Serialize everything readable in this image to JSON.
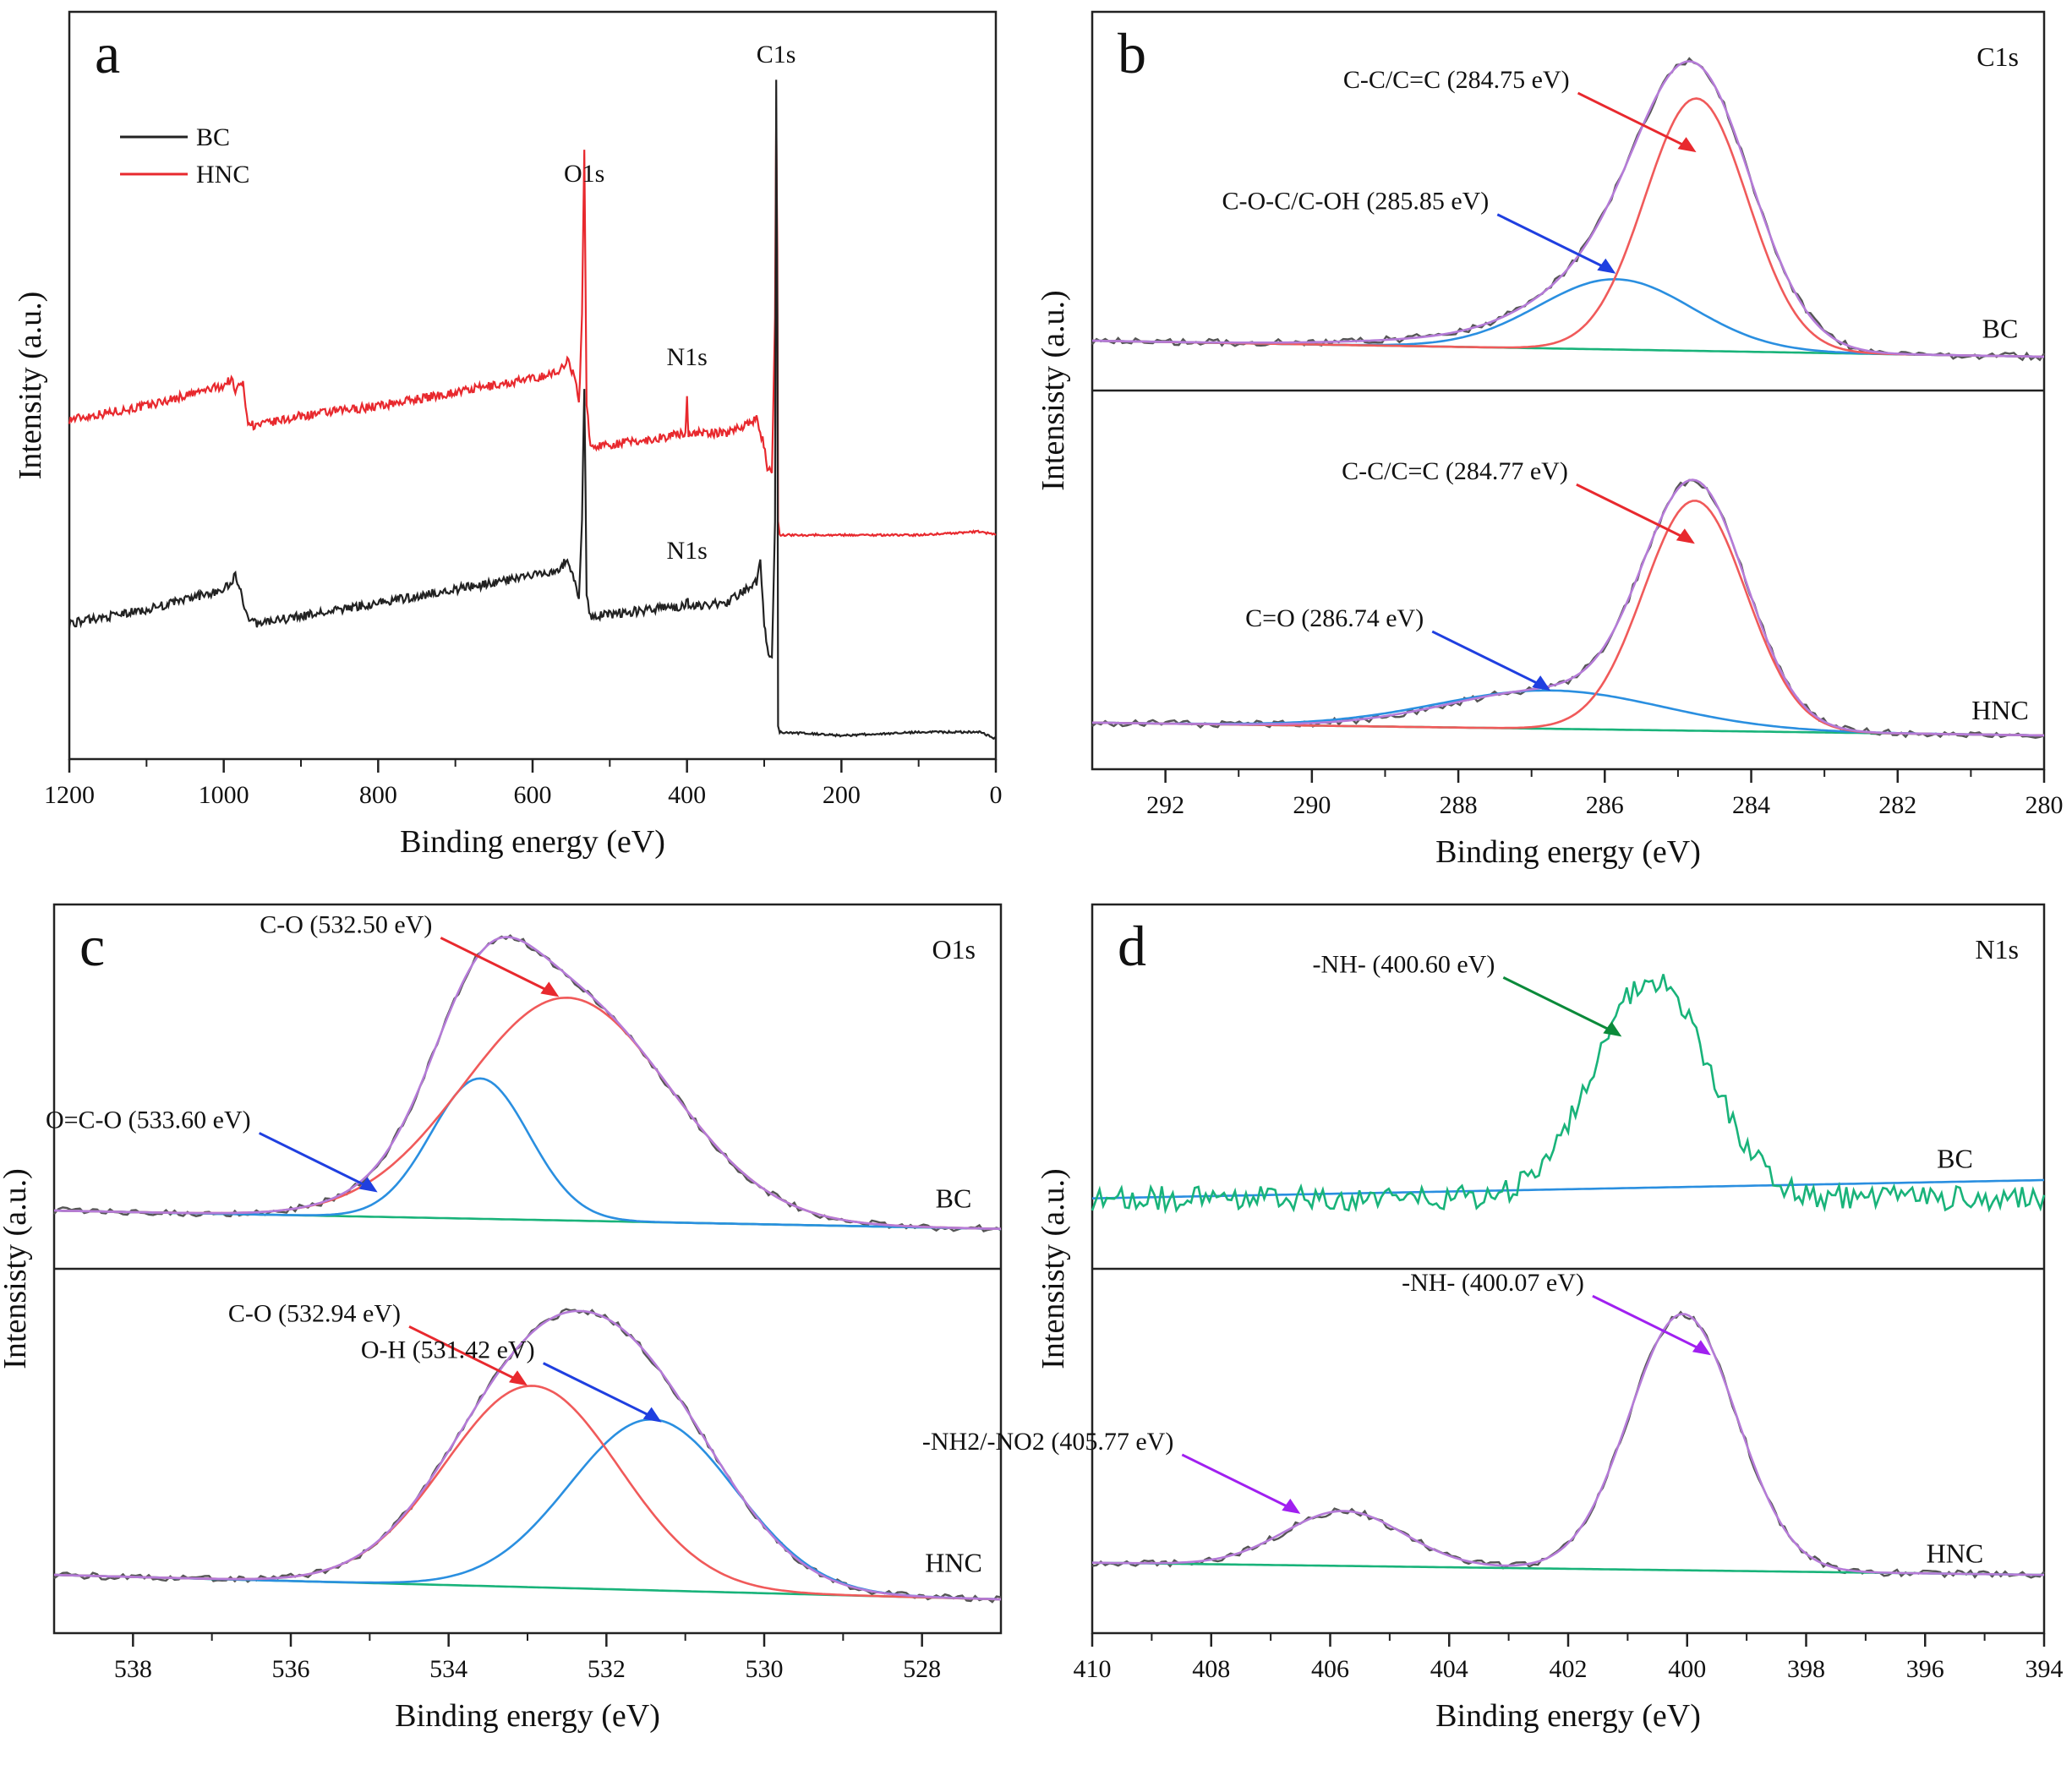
{
  "chart_data": [
    {
      "id": "a",
      "type": "line",
      "panel_label": "a",
      "xlabel": "Binding energy (eV)",
      "ylabel": "Intensity (a.u.)",
      "xlim": [
        1200,
        0
      ],
      "ylim": [
        0,
        100
      ],
      "xticks": [
        1200,
        1000,
        800,
        600,
        400,
        200,
        0
      ],
      "legend": {
        "position": "top-left",
        "entries": [
          {
            "label": "BC",
            "color": "#222222"
          },
          {
            "label": "HNC",
            "color": "#e8292e"
          }
        ]
      },
      "series": [
        {
          "name": "HNC",
          "color": "#e8292e",
          "points": [
            [
              1200,
              45
            ],
            [
              1100,
              47
            ],
            [
              1000,
              50
            ],
            [
              990,
              51
            ],
            [
              985,
              49
            ],
            [
              975,
              51
            ],
            [
              970,
              45
            ],
            [
              960,
              44
            ],
            [
              900,
              45.5
            ],
            [
              800,
              47
            ],
            [
              700,
              49
            ],
            [
              600,
              51
            ],
            [
              565,
              52
            ],
            [
              555,
              54
            ],
            [
              545,
              51
            ],
            [
              540,
              47
            ],
            [
              536,
              60
            ],
            [
              533,
              85
            ],
            [
              530,
              47
            ],
            [
              525,
              41
            ],
            [
              450,
              42
            ],
            [
              402,
              43
            ],
            [
              400,
              48
            ],
            [
              398,
              43
            ],
            [
              350,
              43
            ],
            [
              310,
              45
            ],
            [
              302,
              42
            ],
            [
              296,
              38
            ],
            [
              290,
              37
            ],
            [
              286,
              60
            ],
            [
              284.5,
              90
            ],
            [
              283,
              70
            ],
            [
              282,
              30
            ],
            [
              280,
              28
            ],
            [
              200,
              28
            ],
            [
              100,
              28
            ],
            [
              20,
              28.5
            ],
            [
              0,
              28
            ]
          ]
        },
        {
          "name": "BC",
          "color": "#222222",
          "points": [
            [
              1200,
              15
            ],
            [
              1100,
              17
            ],
            [
              1000,
              20
            ],
            [
              990,
              21
            ],
            [
              985,
              22
            ],
            [
              978,
              20
            ],
            [
              970,
              16
            ],
            [
              960,
              15
            ],
            [
              900,
              16
            ],
            [
              800,
              18
            ],
            [
              700,
              20
            ],
            [
              600,
              22
            ],
            [
              565,
              23
            ],
            [
              555,
              24.5
            ],
            [
              545,
              21
            ],
            [
              540,
              18
            ],
            [
              536,
              30
            ],
            [
              533,
              50
            ],
            [
              530,
              19
            ],
            [
              525,
              16
            ],
            [
              450,
              17
            ],
            [
              402,
              17.5
            ],
            [
              400,
              19
            ],
            [
              398,
              17.5
            ],
            [
              350,
              18
            ],
            [
              310,
              21
            ],
            [
              305,
              24
            ],
            [
              300,
              15
            ],
            [
              296,
              11
            ],
            [
              290,
              10
            ],
            [
              286,
              30
            ],
            [
              284.5,
              95
            ],
            [
              283,
              60
            ],
            [
              282,
              0
            ],
            [
              280,
              -1
            ],
            [
              200,
              -1.5
            ],
            [
              100,
              -1
            ],
            [
              20,
              -1
            ],
            [
              0,
              -2
            ]
          ]
        }
      ],
      "annotations": [
        {
          "text": "C1s",
          "x": 284.6,
          "y": 97.5
        },
        {
          "text": "O1s",
          "x": 533,
          "y": 80
        },
        {
          "text": "N1s",
          "x": 400,
          "y": 53
        },
        {
          "text": "N1s",
          "x": 400,
          "y": 24.5
        }
      ]
    },
    {
      "id": "b",
      "type": "line",
      "panel_label": "b",
      "core_level": "C1s",
      "xlabel": "Binding energy (eV)",
      "ylabel": "Intensisty (a.u.)",
      "xlim": [
        293,
        280
      ],
      "xticks": [
        292,
        290,
        288,
        286,
        284,
        282,
        280
      ],
      "subpanels": [
        {
          "sample": "BC",
          "components": [
            {
              "name": "envelope",
              "color": "#b57bd8",
              "baseline": [
                5,
                0
              ],
              "peaks": [
                [
                  284.75,
                  79,
                  0.78
                ],
                [
                  285.9,
                  20,
                  1.02
                ],
                [
                  287.6,
                  2.5,
                  1.5
                ]
              ]
            },
            {
              "name": "C-C/C=C",
              "color": "#f05a5a",
              "baseline": [
                5,
                0
              ],
              "peaks": [
                [
                  284.75,
                  79,
                  0.7
                ]
              ]
            },
            {
              "name": "C-O-C/C-OH",
              "color": "#2a8fe0",
              "baseline": [
                5,
                0
              ],
              "peaks": [
                [
                  285.85,
                  22,
                  1.05
                ]
              ]
            },
            {
              "name": "background",
              "color": "#19b37a",
              "baseline": [
                5,
                0
              ],
              "peaks": []
            }
          ],
          "annotations": [
            {
              "text": "C-C/C=C (284.75 eV)",
              "color": "#e8292e",
              "at": [
                284.75,
                64
              ]
            },
            {
              "text": "C-O-C/C-OH (285.85 eV)",
              "color": "#1f3fe0",
              "at": [
                285.85,
                26
              ]
            },
            {
              "text": "BC",
              "at": [
                280.6,
                6
              ]
            }
          ]
        },
        {
          "sample": "HNC",
          "components": [
            {
              "name": "envelope",
              "color": "#b57bd8",
              "baseline": [
                4,
                0
              ],
              "peaks": [
                [
                  284.77,
                  74,
                  0.7
                ],
                [
                  286.74,
                  12,
                  1.4
                ]
              ]
            },
            {
              "name": "C-C/C=C",
              "color": "#f05a5a",
              "baseline": [
                4,
                0
              ],
              "peaks": [
                [
                  284.77,
                  72,
                  0.7
                ]
              ]
            },
            {
              "name": "C=O",
              "color": "#2a8fe0",
              "baseline": [
                4,
                0
              ],
              "peaks": [
                [
                  286.74,
                  12,
                  1.55
                ]
              ]
            },
            {
              "name": "background",
              "color": "#19b37a",
              "baseline": [
                4,
                0
              ],
              "peaks": []
            }
          ],
          "annotations": [
            {
              "text": "C-C/C=C (284.77 eV)",
              "color": "#e8292e",
              "at": [
                284.77,
                60
              ]
            },
            {
              "text": "C=O (286.74 eV)",
              "color": "#1f3fe0",
              "at": [
                286.74,
                14
              ]
            },
            {
              "text": "HNC",
              "at": [
                280.6,
                5
              ]
            }
          ]
        }
      ]
    },
    {
      "id": "c",
      "type": "line",
      "panel_label": "c",
      "core_level": "O1s",
      "xlabel": "Binding energy (eV)",
      "ylabel": "Intensisty (a.u.)",
      "xlim": [
        539,
        527
      ],
      "xticks": [
        538,
        536,
        534,
        532,
        530,
        528
      ],
      "subpanels": [
        {
          "sample": "BC",
          "components": [
            {
              "name": "envelope",
              "color": "#b57bd8",
              "baseline": [
                8,
                2
              ],
              "peaks": [
                [
                  532.5,
                  73,
                  1.3
                ],
                [
                  533.6,
                  36,
                  0.62
                ]
              ]
            },
            {
              "name": "C-O",
              "color": "#f05a5a",
              "baseline": [
                8,
                2
              ],
              "peaks": [
                [
                  532.5,
                  73,
                  1.3
                ]
              ]
            },
            {
              "name": "O=C-O",
              "color": "#2a8fe0",
              "baseline": [
                8,
                2
              ],
              "peaks": [
                [
                  533.6,
                  46,
                  0.62
                ]
              ]
            },
            {
              "name": "background",
              "color": "#19b37a",
              "baseline": [
                8,
                2
              ],
              "peaks": []
            }
          ],
          "annotations": [
            {
              "text": "C-O (532.50 eV)",
              "color": "#e8292e",
              "at": [
                532.6,
                78
              ]
            },
            {
              "text": "O=C-O (533.60 eV)",
              "color": "#1f3fe0",
              "at": [
                534.9,
                14
              ]
            },
            {
              "text": "BC",
              "at": [
                527.6,
                9
              ]
            }
          ]
        },
        {
          "sample": "HNC",
          "components": [
            {
              "name": "envelope",
              "color": "#b57bd8",
              "baseline": [
                8,
                0
              ],
              "peaks": [
                [
                  532.94,
                  66,
                  1.1
                ],
                [
                  531.42,
                  50,
                  1.05
                ]
              ]
            },
            {
              "name": "C-O",
              "color": "#f05a5a",
              "baseline": [
                8,
                0
              ],
              "peaks": [
                [
                  532.94,
                  66,
                  1.1
                ]
              ]
            },
            {
              "name": "O-H",
              "color": "#2a8fe0",
              "baseline": [
                8,
                0
              ],
              "peaks": [
                [
                  531.42,
                  56,
                  1.05
                ]
              ]
            },
            {
              "name": "background",
              "color": "#19b37a",
              "baseline": [
                8,
                0
              ],
              "peaks": []
            }
          ],
          "annotations": [
            {
              "text": "C-O (532.94 eV)",
              "color": "#e8292e",
              "at": [
                533.0,
                70
              ]
            },
            {
              "text": "O-H (531.42 eV)",
              "color": "#1f3fe0",
              "at": [
                531.3,
                58
              ]
            },
            {
              "text": "HNC",
              "at": [
                527.6,
                9
              ]
            }
          ]
        }
      ]
    },
    {
      "id": "d",
      "type": "line",
      "panel_label": "d",
      "core_level": "N1s",
      "xlabel": "Binding energy (eV)",
      "ylabel": "Intensisty (a.u.)",
      "xlim": [
        410,
        394
      ],
      "xticks": [
        410,
        408,
        406,
        404,
        402,
        400,
        398,
        396,
        394
      ],
      "subpanels": [
        {
          "sample": "BC",
          "components": [
            {
              "name": "fit",
              "color": "#19b37a",
              "baseline": [
                12,
                12
              ],
              "peaks": [
                [
                  400.6,
                  72,
                  0.95
                ]
              ],
              "noise": 4
            },
            {
              "name": "background",
              "color": "#2a8fe0",
              "baseline": [
                12,
                18
              ],
              "peaks": []
            }
          ],
          "annotations": [
            {
              "text": "-NH- (400.60 eV)",
              "color": "#0b8a3a",
              "at": [
                401.1,
                65
              ]
            },
            {
              "text": "BC",
              "at": [
                395.5,
                22
              ]
            }
          ]
        },
        {
          "sample": "HNC",
          "components": [
            {
              "name": "envelope",
              "color": "#b57bd8",
              "baseline": [
                12,
                8
              ],
              "peaks": [
                [
                  400.07,
                  84,
                  0.9
                ],
                [
                  405.77,
                  18,
                  1.0
                ]
              ]
            },
            {
              "name": "background",
              "color": "#19b37a",
              "baseline": [
                12,
                8
              ],
              "peaks": []
            }
          ],
          "annotations": [
            {
              "text": "-NH- (400.07 eV)",
              "color": "#a020f0",
              "at": [
                399.6,
                80
              ]
            },
            {
              "text": "-NH2/-NO2 (405.77 eV)",
              "color": "#a020f0",
              "at": [
                406.5,
                28
              ]
            },
            {
              "text": "HNC",
              "at": [
                395.5,
                12
              ]
            }
          ]
        }
      ]
    }
  ]
}
